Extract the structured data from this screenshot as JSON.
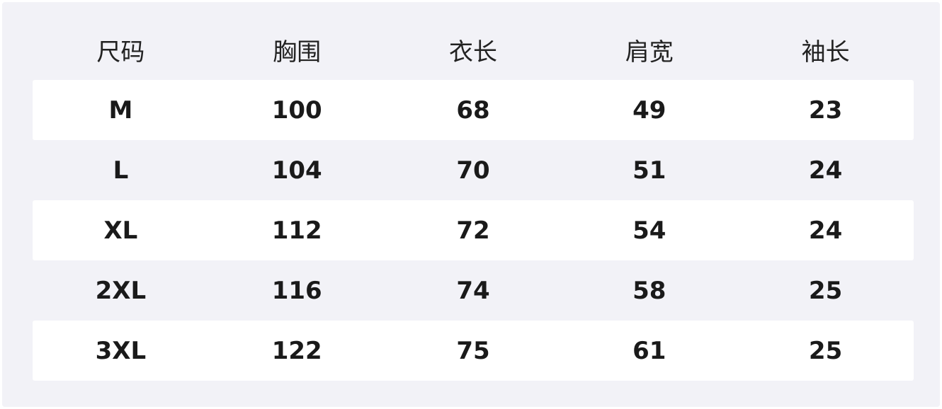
{
  "headers": [
    "尺码",
    "胸围",
    "衣长",
    "肩宽",
    "袖长"
  ],
  "rows": [
    [
      "M",
      "100",
      "68",
      "49",
      "23"
    ],
    [
      "L",
      "104",
      "70",
      "51",
      "24"
    ],
    [
      "XL",
      "112",
      "72",
      "54",
      "24"
    ],
    [
      "2XL",
      "116",
      "74",
      "58",
      "25"
    ],
    [
      "3XL",
      "122",
      "75",
      "61",
      "25"
    ]
  ],
  "colors": {
    "background": "#f2f2f7",
    "stripe": "#ffffff",
    "text": "#1a1a1a"
  }
}
